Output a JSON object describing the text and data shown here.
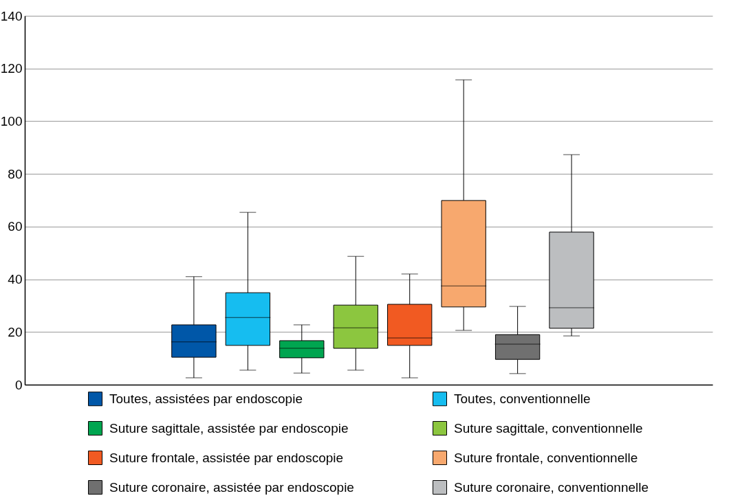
{
  "chart_data": {
    "type": "box",
    "categories": [
      null
    ],
    "ylim": [
      0,
      140
    ],
    "yticks": [
      0,
      20,
      40,
      60,
      80,
      100,
      120,
      140
    ],
    "grid": "y",
    "legend": "bottom",
    "tick_labels": "y",
    "series": [
      {
        "name": "Toutes, assistées par endoscopie",
        "color": "#0057a8",
        "boxes": [
          {
            "low": 2.6,
            "q1": 10.4,
            "median": 16.2,
            "q3": 22.7,
            "high": 41
          }
        ]
      },
      {
        "name": "Toutes, conventionnelle",
        "color": "#16bdf0",
        "boxes": [
          {
            "low": 5.5,
            "q1": 14.9,
            "median": 25.5,
            "q3": 34.9,
            "high": 65.4
          }
        ]
      },
      {
        "name": "Suture sagittale, assistée par endoscopie",
        "color": "#00a550",
        "boxes": [
          {
            "low": 4.4,
            "q1": 10.2,
            "median": 13.8,
            "q3": 16.7,
            "high": 22.7
          }
        ]
      },
      {
        "name": "Suture sagittale, conventionnelle",
        "color": "#8cc63f",
        "boxes": [
          {
            "low": 5.5,
            "q1": 13.8,
            "median": 21.6,
            "q3": 30.2,
            "high": 48.7
          }
        ]
      },
      {
        "name": "Suture frontale, assistée par endoscopie",
        "color": "#f15a22",
        "boxes": [
          {
            "low": 2.6,
            "q1": 14.9,
            "median": 17.7,
            "q3": 30.5,
            "high": 42
          }
        ]
      },
      {
        "name": "Suture frontale, conventionnelle",
        "color": "#f7a86e",
        "boxes": [
          {
            "low": 20.6,
            "q1": 29.5,
            "median": 37.5,
            "q3": 69.9,
            "high": 115.7
          }
        ]
      },
      {
        "name": "Suture coronaire, assistée par endoscopie",
        "color": "#707070",
        "boxes": [
          {
            "low": 4.2,
            "q1": 9.6,
            "median": 15.4,
            "q3": 19,
            "high": 29.7
          }
        ]
      },
      {
        "name": "Suture coronaire, conventionnelle",
        "color": "#bcbec0",
        "boxes": [
          {
            "low": 18.5,
            "q1": 21.4,
            "median": 29.2,
            "q3": 57.9,
            "high": 87.3
          }
        ]
      }
    ]
  }
}
